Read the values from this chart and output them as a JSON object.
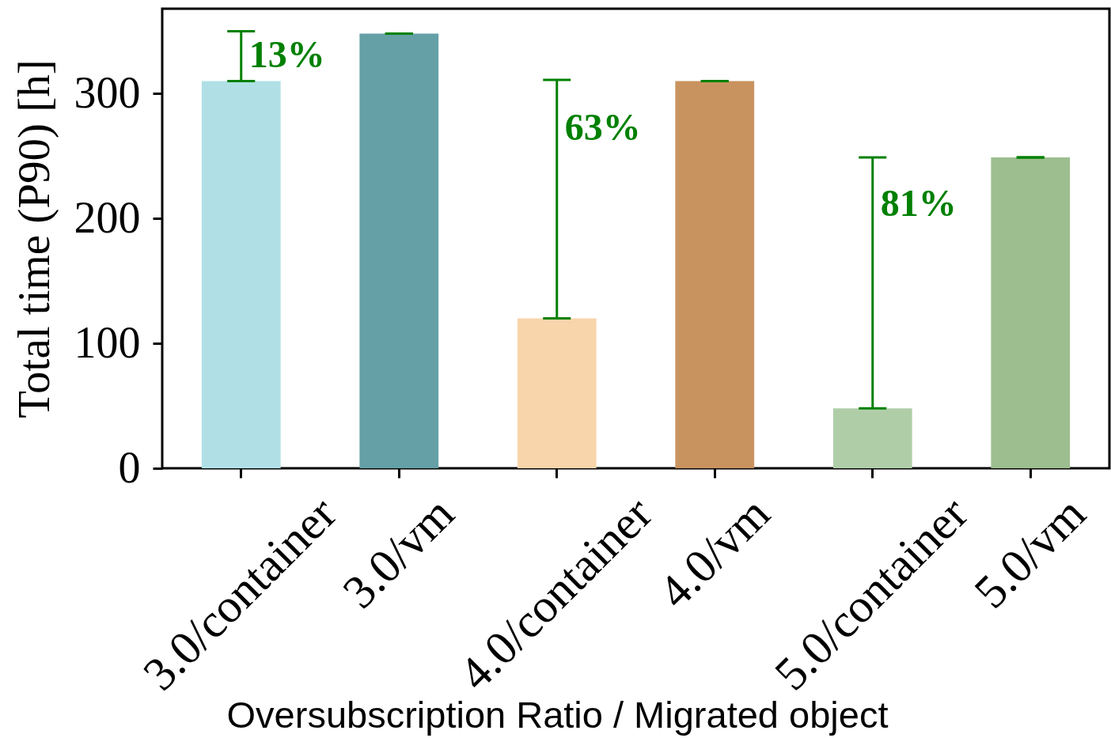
{
  "chart_data": {
    "type": "bar",
    "xlabel": "Oversubscription Ratio / Migrated object",
    "ylabel": "Total time (P90) [h]",
    "categories": [
      "3.0/container",
      "3.0/vm",
      "4.0/container",
      "4.0/vm",
      "5.0/container",
      "5.0/vm"
    ],
    "values": [
      310,
      348,
      120,
      310,
      48,
      249
    ],
    "colors": [
      "#b0e0e6",
      "#64a0a6",
      "#f8d5aa",
      "#c9935f",
      "#afcea8",
      "#9dbe8e"
    ],
    "errors": [
      [
        310,
        350
      ],
      0,
      [
        120,
        311
      ],
      0,
      [
        48,
        249
      ],
      0
    ],
    "ylim": [
      0,
      368
    ],
    "yticks": [
      0,
      100,
      200,
      300
    ],
    "annotations": [
      {
        "text": "13%",
        "x": "3.0/container",
        "y": 330
      },
      {
        "text": "63%",
        "x": "4.0/container",
        "y": 272
      },
      {
        "text": "81%",
        "x": "5.0/container",
        "y": 211
      }
    ]
  }
}
